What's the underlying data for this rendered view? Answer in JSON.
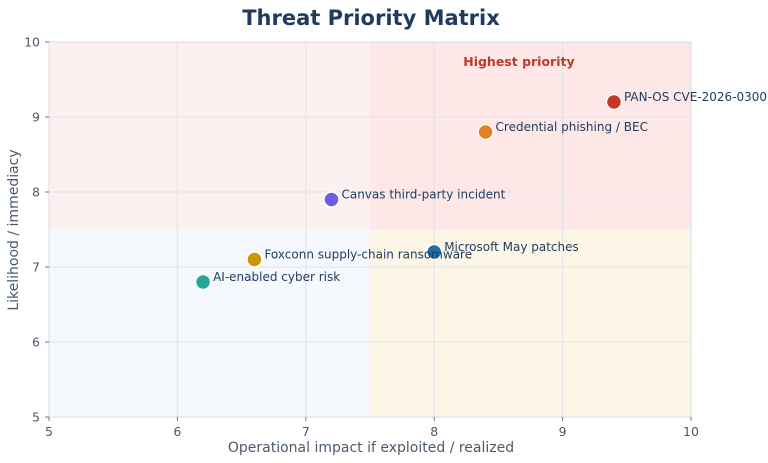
{
  "chart_data": {
    "type": "scatter",
    "title": "Threat Priority Matrix",
    "xlabel": "Operational impact if exploited / realized",
    "ylabel": "Likelihood / immediacy",
    "xlim": [
      5,
      10
    ],
    "ylim": [
      5,
      10
    ],
    "xticks": [
      5,
      6,
      7,
      8,
      9,
      10
    ],
    "yticks": [
      5,
      6,
      7,
      8,
      9,
      10
    ],
    "grid": true,
    "quadrant_threshold": {
      "x": 7.5,
      "y": 7.5
    },
    "quadrant_colors": {
      "top_left": "#fdf0f0",
      "top_right": "#fde7e7",
      "bottom_left": "#f5f8fd",
      "bottom_right": "#fdf6e6"
    },
    "annotation": {
      "text": "Highest priority",
      "x": 8.66,
      "y": 9.68,
      "color": "#c0392b"
    },
    "points": [
      {
        "label": "PAN-OS CVE-2026-0300",
        "x": 9.4,
        "y": 9.2,
        "color": "#c0392b"
      },
      {
        "label": "Credential phishing / BEC",
        "x": 8.4,
        "y": 8.8,
        "color": "#e67e22"
      },
      {
        "label": "Canvas third-party incident",
        "x": 7.2,
        "y": 7.9,
        "color": "#6c5ce7"
      },
      {
        "label": "Microsoft May patches",
        "x": 8.0,
        "y": 7.2,
        "color": "#1f6fa8"
      },
      {
        "label": "Foxconn supply-chain ransomware",
        "x": 6.6,
        "y": 7.1,
        "color": "#c9960c"
      },
      {
        "label": "AI-enabled cyber risk",
        "x": 6.2,
        "y": 6.8,
        "color": "#26a69a"
      }
    ]
  }
}
